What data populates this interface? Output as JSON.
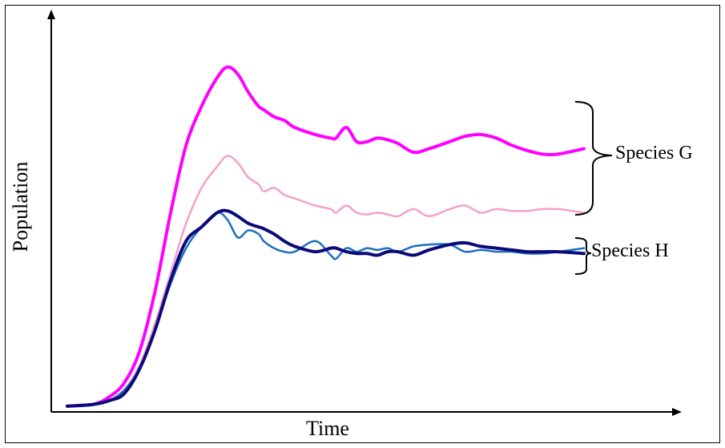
{
  "chart_data": {
    "type": "line",
    "title": "",
    "xlabel": "Time",
    "ylabel": "Population",
    "xlim": [
      0,
      100
    ],
    "ylim": [
      0,
      100
    ],
    "grid": false,
    "legend": "none",
    "groups": [
      {
        "name": "Species G",
        "series_indices": [
          0,
          1
        ]
      },
      {
        "name": "Species H",
        "series_indices": [
          2,
          3
        ]
      }
    ],
    "series": [
      {
        "color": "#ff00ff",
        "width": 4,
        "x": [
          0,
          5,
          8,
          11,
          14,
          17,
          20,
          23,
          26,
          29,
          31,
          33,
          35,
          37,
          38,
          40,
          42,
          44,
          48,
          51,
          52,
          54,
          56,
          58,
          60,
          62,
          64,
          67,
          70,
          74,
          77,
          80,
          83,
          86,
          89,
          92,
          95,
          100
        ],
        "y": [
          0.5,
          1,
          3,
          7,
          16,
          33,
          55,
          74,
          85,
          93,
          96,
          94,
          89,
          85,
          84,
          82,
          81,
          79,
          77,
          76,
          76,
          79,
          75,
          75,
          76,
          75.5,
          74.5,
          72,
          73,
          75,
          76.5,
          77,
          76,
          74,
          72.5,
          71.5,
          71.5,
          73
        ]
      },
      {
        "color": "#f4a0c8",
        "width": 2.5,
        "x": [
          0,
          5,
          8,
          11,
          14,
          17,
          20,
          23,
          26,
          29,
          31,
          33,
          35,
          37,
          38,
          40,
          42,
          44,
          48,
          51,
          52,
          54,
          56,
          58,
          60,
          62,
          64,
          67,
          70,
          74,
          77,
          80,
          83,
          86,
          89,
          92,
          95,
          100
        ],
        "y": [
          0.5,
          1,
          2,
          5,
          12,
          24,
          38,
          52,
          62,
          68,
          71,
          69,
          65,
          63,
          61,
          62,
          60,
          59,
          57,
          56,
          55,
          57,
          55,
          54.5,
          55,
          54.5,
          54,
          56,
          54,
          56,
          57,
          55,
          56,
          55.5,
          55.5,
          56,
          56,
          55
        ]
      },
      {
        "color": "#1e6fc0",
        "width": 2.5,
        "x": [
          0,
          5,
          8,
          11,
          14,
          17,
          20,
          23,
          26,
          29,
          31,
          33,
          35,
          37,
          38,
          40,
          42,
          44,
          48,
          51,
          52,
          54,
          56,
          58,
          60,
          62,
          64,
          67,
          70,
          74,
          77,
          80,
          83,
          86,
          89,
          92,
          95,
          100
        ],
        "y": [
          0.5,
          1,
          2,
          5,
          11,
          22,
          35,
          45,
          51,
          55,
          53,
          48,
          50,
          49,
          47,
          45,
          44,
          44,
          47,
          43,
          42,
          45,
          44,
          45,
          44.5,
          45,
          44,
          45.5,
          46,
          46,
          44,
          44.5,
          44,
          44,
          43.5,
          43.5,
          44,
          45
        ]
      },
      {
        "color": "#0a0a78",
        "width": 4,
        "x": [
          0,
          5,
          8,
          11,
          14,
          17,
          20,
          23,
          26,
          29,
          31,
          33,
          35,
          37,
          38,
          40,
          42,
          44,
          48,
          51,
          52,
          54,
          56,
          58,
          60,
          62,
          64,
          67,
          70,
          74,
          77,
          80,
          83,
          86,
          89,
          92,
          95,
          100
        ],
        "y": [
          0.5,
          1,
          2,
          4,
          11,
          22,
          36,
          47,
          51,
          55,
          55.5,
          54,
          52,
          51,
          50.5,
          49,
          47,
          45.5,
          44,
          45,
          45,
          44,
          43.5,
          43.5,
          43,
          44,
          44,
          43,
          44.5,
          46,
          46.5,
          45.5,
          45,
          44.5,
          44,
          44,
          44,
          43.5
        ]
      }
    ]
  }
}
